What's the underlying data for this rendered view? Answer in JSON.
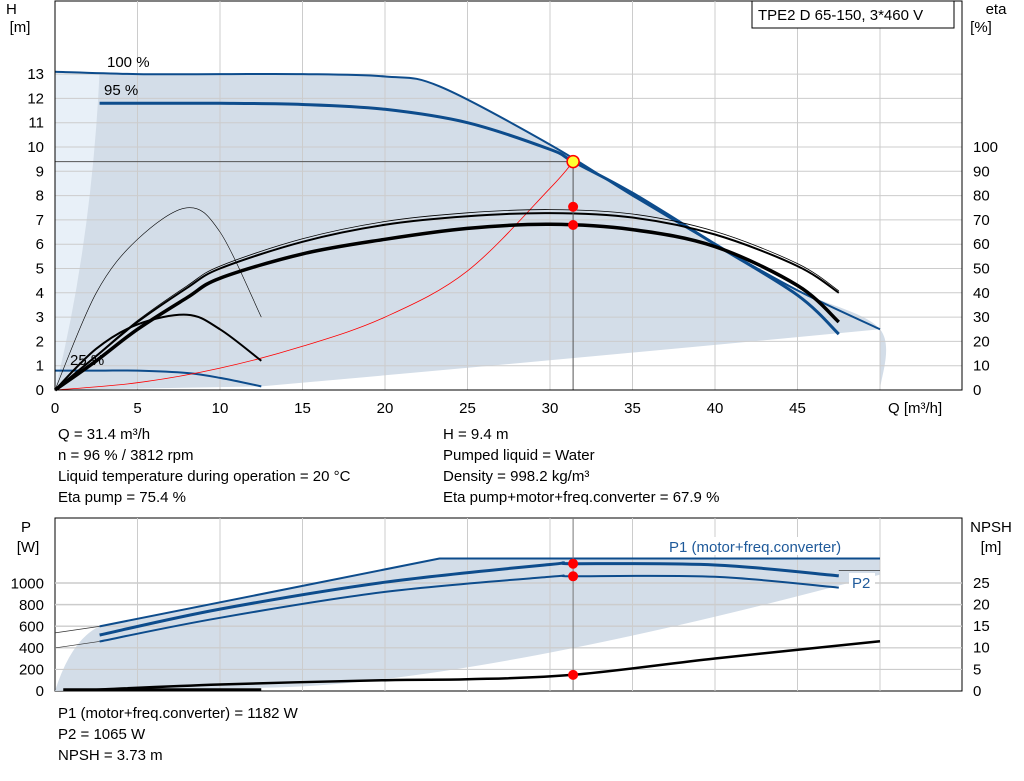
{
  "top_chart": {
    "title_box": "TPE2 D 65-150, 3*460 V",
    "y_left_label": [
      "H",
      "[m]"
    ],
    "y_right_label": [
      "eta",
      "[%]"
    ],
    "x_label": "Q [m³/h]",
    "x_ticks": [
      "0",
      "5",
      "10",
      "15",
      "20",
      "25",
      "30",
      "35",
      "40",
      "45"
    ],
    "y_left_ticks": [
      "0",
      "1",
      "2",
      "3",
      "4",
      "5",
      "6",
      "7",
      "8",
      "9",
      "10",
      "11",
      "12",
      "13"
    ],
    "y_right_ticks": [
      "0",
      "10",
      "20",
      "30",
      "40",
      "50",
      "60",
      "70",
      "80",
      "90",
      "100"
    ],
    "curve_labels": {
      "c100": "100 %",
      "c95": "95 %",
      "c25": "25 %"
    }
  },
  "info_left": [
    "Q = 31.4 m³/h",
    "n = 96 % / 3812 rpm",
    "Liquid temperature during operation = 20 °C",
    "Eta pump = 75.4 %"
  ],
  "info_right": [
    "H = 9.4 m",
    "Pumped liquid = Water",
    "Density = 998.2 kg/m³",
    "Eta pump+motor+freq.converter = 67.9 %"
  ],
  "bottom_chart": {
    "y_left_label": [
      "P",
      "[W]"
    ],
    "y_right_label": [
      "NPSH",
      "[m]"
    ],
    "y_left_ticks": [
      "0",
      "200",
      "400",
      "600",
      "800",
      "1000"
    ],
    "y_right_ticks": [
      "0",
      "5",
      "10",
      "15",
      "20",
      "25"
    ],
    "curve_labels": {
      "p1": "P1 (motor+freq.converter)",
      "p2": "P2"
    }
  },
  "info_bottom": [
    "P1 (motor+freq.converter) = 1182 W",
    "P2 = 1065 W",
    "NPSH = 3.73 m"
  ],
  "colors": {
    "envelope": "#d3dde8",
    "envelope_light": "#e8f0f8",
    "curve_blue": "#0d4c8c",
    "label_blue": "#1f5a9a",
    "grid": "#cccccc",
    "marker": "#ff0000",
    "system_curve": "#ff0000"
  },
  "chart_data": [
    {
      "type": "line",
      "title": "",
      "xlabel": "Q [m³/h]",
      "ylabel": "H [m]",
      "y2label": "eta [%]",
      "xlim": [
        0,
        50
      ],
      "ylim": [
        0,
        13.5
      ],
      "y2lim": [
        0,
        135
      ],
      "grid": true,
      "series": [
        {
          "name": "100 %",
          "x": [
            0,
            5,
            10,
            15,
            20,
            23.3,
            30,
            35,
            40,
            45,
            50
          ],
          "y": [
            13.1,
            13.0,
            13.0,
            13.0,
            12.9,
            12.5,
            10.1,
            8.0,
            6.0,
            4.1,
            2.5
          ]
        },
        {
          "name": "95 %",
          "x": [
            2.7,
            5,
            10,
            15,
            20,
            25,
            30,
            31.4,
            35,
            40,
            45,
            47.5
          ],
          "y": [
            11.8,
            11.8,
            11.8,
            11.75,
            11.55,
            11.0,
            9.9,
            9.4,
            8.1,
            6.0,
            3.9,
            2.3
          ]
        },
        {
          "name": "25 %",
          "x": [
            0,
            2.7,
            5,
            8,
            10,
            12.5
          ],
          "y": [
            0.8,
            0.8,
            0.8,
            0.7,
            0.5,
            0.15
          ]
        },
        {
          "x": [
            0,
            5,
            10,
            15,
            20,
            25,
            30,
            31.4
          ],
          "y": [
            0,
            0.3,
            0.9,
            1.8,
            3.0,
            4.9,
            8.3,
            9.4
          ]
        },
        {
          "x": [
            0,
            2.5,
            5,
            8,
            10,
            15,
            20,
            25,
            30,
            35,
            40,
            45,
            47.5
          ],
          "y2": [
            0,
            14,
            28,
            42,
            50,
            61,
            68,
            71.5,
            72.8,
            71,
            64,
            51,
            40
          ],
          "name": ""
        },
        {
          "x": [
            0,
            2.5,
            5,
            8,
            10,
            15,
            20,
            25,
            30,
            35,
            40,
            45,
            47.5
          ],
          "y2": [
            0,
            12,
            25,
            38,
            46,
            56,
            62,
            66.5,
            68.2,
            66,
            59,
            43,
            28
          ]
        },
        {
          "x": [
            0,
            2.5,
            5,
            8,
            10,
            12.5
          ],
          "y2": [
            0,
            17,
            27,
            31,
            25,
            12
          ]
        },
        {
          "x": [
            0,
            2.5,
            5,
            8,
            10,
            12.5
          ],
          "y2": [
            0,
            40,
            62,
            75,
            65,
            30
          ]
        }
      ],
      "operating_point": {
        "x": 31.4,
        "H": 9.4,
        "eta_pump": 75.4,
        "eta_total": 67.9
      },
      "box_label": "TPE2 D 65-150, 3*460 V"
    },
    {
      "type": "line",
      "xlabel": "Q [m³/h]",
      "ylabel": "P [W]",
      "y2label": "NPSH [m]",
      "xlim": [
        0,
        50
      ],
      "ylim": [
        0,
        1270
      ],
      "y2lim": [
        0,
        31.8
      ],
      "grid": true,
      "series": [
        {
          "name": "P1 (motor+freq.converter)",
          "x": [
            2.7,
            10,
            20,
            30,
            31.4,
            40,
            47.5
          ],
          "y": [
            520,
            760,
            1010,
            1175,
            1182,
            1170,
            1070
          ]
        },
        {
          "name": "P2",
          "x": [
            2.7,
            10,
            20,
            30,
            31.4,
            40,
            47.5
          ],
          "y": [
            460,
            680,
            920,
            1060,
            1065,
            1060,
            960
          ]
        },
        {
          "name": "NPSH",
          "x": [
            2.5,
            10,
            20,
            25,
            31.4,
            40,
            50
          ],
          "y2": [
            0.3,
            1.5,
            2.5,
            2.7,
            3.73,
            7.5,
            11.5
          ]
        }
      ],
      "operating_point": {
        "x": 31.4,
        "P1": 1182,
        "P2": 1065,
        "NPSH": 3.73
      }
    }
  ]
}
